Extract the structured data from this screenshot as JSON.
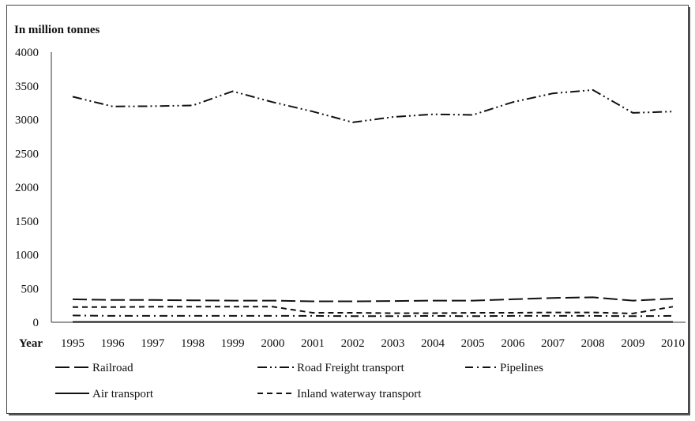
{
  "chart_data": {
    "type": "line",
    "ylabel": "In million tonnes",
    "xlabel": "Year",
    "x": [
      "1995",
      "1996",
      "1997",
      "1998",
      "1999",
      "2000",
      "2001",
      "2002",
      "2003",
      "2004",
      "2005",
      "2006",
      "2007",
      "2008",
      "2009",
      "2010"
    ],
    "ylim": [
      0,
      4000
    ],
    "yticks": [
      "0",
      "500",
      "1000",
      "1500",
      "2000",
      "2500",
      "3000",
      "3500",
      "4000"
    ],
    "grid": false,
    "legend_position": "bottom",
    "series": [
      {
        "name": "Railroad",
        "style": "long-dash",
        "color": "#111111",
        "values": [
          340,
          330,
          330,
          325,
          320,
          320,
          310,
          310,
          315,
          320,
          320,
          340,
          360,
          370,
          320,
          350
        ]
      },
      {
        "name": "Road Freight transport",
        "style": "dash-dot-dot",
        "color": "#111111",
        "values": [
          3340,
          3195,
          3200,
          3210,
          3420,
          3260,
          3120,
          2960,
          3040,
          3080,
          3070,
          3260,
          3390,
          3440,
          3100,
          3120
        ]
      },
      {
        "name": "Pipelines",
        "style": "dash-dot",
        "color": "#111111",
        "values": [
          100,
          95,
          95,
          95,
          95,
          95,
          95,
          90,
          90,
          95,
          90,
          95,
          95,
          95,
          90,
          95
        ]
      },
      {
        "name": "Air transport",
        "style": "solid",
        "color": "#111111",
        "values": [
          5,
          5,
          5,
          5,
          5,
          5,
          5,
          5,
          5,
          5,
          5,
          5,
          5,
          5,
          5,
          5
        ]
      },
      {
        "name": "Inland waterway transport",
        "style": "short-dash",
        "color": "#111111",
        "values": [
          225,
          225,
          230,
          230,
          230,
          230,
          140,
          140,
          135,
          135,
          140,
          140,
          145,
          145,
          130,
          230
        ]
      }
    ]
  }
}
